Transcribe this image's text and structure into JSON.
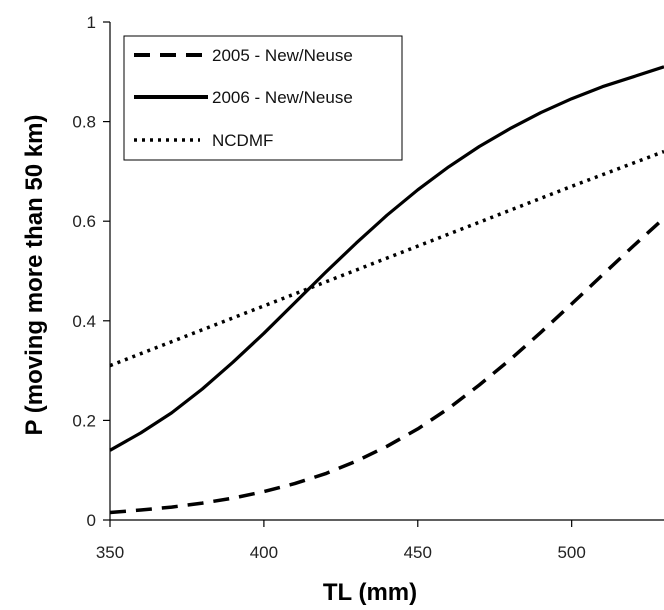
{
  "chart_data": {
    "type": "line",
    "title": "",
    "xlabel": "TL (mm)",
    "ylabel": "P (moving more than 50 km)",
    "xlim": [
      350,
      530
    ],
    "ylim": [
      0,
      1
    ],
    "xticks": [
      350,
      400,
      450,
      500
    ],
    "xtick_labels": [
      "350",
      "400",
      "450",
      "500"
    ],
    "yticks": [
      0,
      0.2,
      0.4,
      0.6,
      0.8,
      1
    ],
    "ytick_labels": [
      "0",
      "0.2",
      "0.4",
      "0.6",
      "0.8",
      "1"
    ],
    "grid": false,
    "legend_position": "top-left",
    "series": [
      {
        "name": "2005 - New/Neuse",
        "style": "dashed",
        "color": "#000000",
        "x": [
          350,
          360,
          370,
          380,
          390,
          400,
          410,
          420,
          430,
          440,
          450,
          460,
          470,
          480,
          490,
          500,
          510,
          520,
          530
        ],
        "y": [
          0.015,
          0.02,
          0.026,
          0.034,
          0.044,
          0.057,
          0.073,
          0.093,
          0.118,
          0.148,
          0.183,
          0.224,
          0.271,
          0.322,
          0.377,
          0.434,
          0.492,
          0.55,
          0.606
        ]
      },
      {
        "name": "2006 - New/Neuse",
        "style": "solid",
        "color": "#000000",
        "x": [
          350,
          360,
          370,
          380,
          390,
          400,
          410,
          420,
          430,
          440,
          450,
          460,
          470,
          480,
          490,
          500,
          510,
          520,
          530
        ],
        "y": [
          0.14,
          0.175,
          0.215,
          0.263,
          0.317,
          0.375,
          0.436,
          0.497,
          0.556,
          0.612,
          0.663,
          0.709,
          0.75,
          0.786,
          0.818,
          0.846,
          0.87,
          0.89,
          0.91
        ]
      },
      {
        "name": "NCDMF",
        "style": "dotted",
        "color": "#000000",
        "x": [
          350,
          400,
          450,
          500,
          530
        ],
        "y": [
          0.31,
          0.43,
          0.55,
          0.67,
          0.74
        ]
      }
    ]
  }
}
